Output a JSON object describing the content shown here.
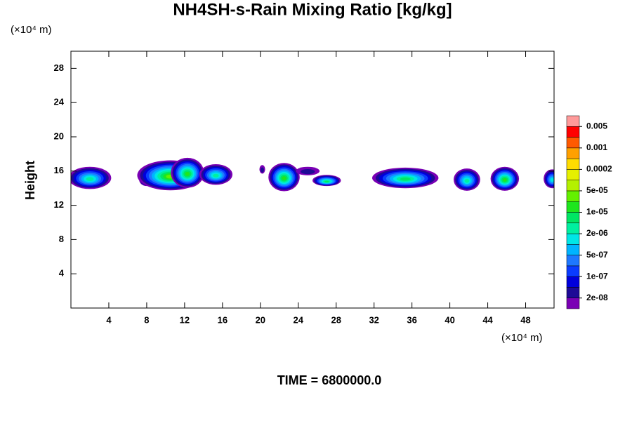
{
  "chart_data": {
    "type": "contour",
    "title": "NH4SH-s-Rain Mixing Ratio [kg/kg]",
    "y_label": "Height",
    "y_unit": "(×10⁴ m)",
    "x_unit": "(×10⁴ m)",
    "footer": "TIME = 6800000.0",
    "xlim": [
      0,
      51
    ],
    "ylim": [
      0,
      30
    ],
    "xticks": [
      4,
      8,
      12,
      16,
      20,
      24,
      28,
      32,
      36,
      40,
      44,
      48
    ],
    "yticks": [
      4,
      8,
      12,
      16,
      20,
      24,
      28
    ],
    "colors": [
      "#7a00b4",
      "#1e0a96",
      "#0000dc",
      "#0a3cff",
      "#1e78ff",
      "#00b4ff",
      "#00e6e6",
      "#00f0a0",
      "#00e664",
      "#1ee61e",
      "#64f000",
      "#b4f000",
      "#e6f000",
      "#ffdc00",
      "#ffa000",
      "#ff5a00",
      "#ff0000",
      "#ff9a9a"
    ],
    "levels": [
      {
        "value": 2e-08,
        "label": "2e-08"
      },
      {
        "value": 1e-07,
        "label": "1e-07"
      },
      {
        "value": 5e-07,
        "label": "5e-07"
      },
      {
        "value": 2e-06,
        "label": "2e-06"
      },
      {
        "value": 1e-05,
        "label": "1e-05"
      },
      {
        "value": 5e-05,
        "label": "5e-05"
      },
      0.0002,
      0.001,
      0.005
    ],
    "cells": [
      {
        "x": 2,
        "y": 15.2,
        "width": 4.5,
        "height": 2.6,
        "peak": 7
      },
      {
        "x": 8,
        "y": 15,
        "width": 1.6,
        "height": 1.5,
        "peak": 9
      },
      {
        "x": 10.5,
        "y": 15.5,
        "width": 7,
        "height": 3.5,
        "peak": 10
      },
      {
        "x": 12.3,
        "y": 15.8,
        "width": 3.5,
        "height": 3.5,
        "peak": 9
      },
      {
        "x": 15.3,
        "y": 15.6,
        "width": 3.5,
        "height": 2.4,
        "peak": 7
      },
      {
        "x": 20.2,
        "y": 16.2,
        "width": 0.6,
        "height": 1,
        "peak": 1
      },
      {
        "x": 22.5,
        "y": 15.3,
        "width": 3.3,
        "height": 3.3,
        "peak": 9
      },
      {
        "x": 25,
        "y": 16,
        "width": 2.5,
        "height": 1,
        "peak": 1
      },
      {
        "x": 27,
        "y": 14.9,
        "width": 3,
        "height": 1.3,
        "peak": 8
      },
      {
        "x": 35.3,
        "y": 15.2,
        "width": 7,
        "height": 2.4,
        "peak": 8
      },
      {
        "x": 41.8,
        "y": 15,
        "width": 2.8,
        "height": 2.6,
        "peak": 7
      },
      {
        "x": 45.8,
        "y": 15.1,
        "width": 3,
        "height": 2.8,
        "peak": 9
      },
      {
        "x": 50.8,
        "y": 15.1,
        "width": 1.8,
        "height": 2.2,
        "peak": 6
      }
    ]
  }
}
